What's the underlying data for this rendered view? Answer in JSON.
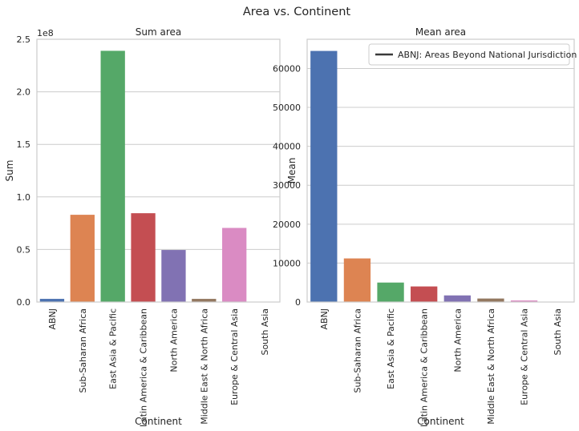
{
  "figure_title": "Area vs. Continent",
  "colors": [
    "#4c72b0",
    "#dd8452",
    "#55a868",
    "#c44e52",
    "#8172b3",
    "#937860",
    "#da8bc3",
    "#8c8c8c"
  ],
  "chart_data": [
    {
      "type": "bar",
      "title": "Sum area",
      "xlabel": "Continent",
      "ylabel": "Sum",
      "offset_label": "1e8",
      "categories": [
        "ABNJ",
        "Sub-Saharan Africa",
        "East Asia & Pacific",
        "Latin America & Caribbean",
        "North America",
        "Middle East & North Africa",
        "Europe & Central Asia",
        "South Asia"
      ],
      "values": [
        3000000,
        83000000,
        239000000,
        84500000,
        49500000,
        3000000,
        70500000,
        300000
      ],
      "ylim": [
        0,
        250000000
      ],
      "yticks": [
        0,
        50000000,
        100000000,
        150000000,
        200000000,
        250000000
      ],
      "ytick_labels": [
        "0.0",
        "0.5",
        "1.0",
        "1.5",
        "2.0",
        "2.5"
      ],
      "grid": "y"
    },
    {
      "type": "bar",
      "title": "Mean area",
      "xlabel": "Continent",
      "ylabel": "Mean",
      "categories": [
        "ABNJ",
        "Sub-Saharan Africa",
        "East Asia & Pacific",
        "Latin America & Caribbean",
        "North America",
        "Middle East & North Africa",
        "Europe & Central Asia",
        "South Asia"
      ],
      "values": [
        64500,
        11200,
        5000,
        4000,
        1700,
        900,
        400,
        50
      ],
      "ylim": [
        0,
        67500
      ],
      "yticks": [
        0,
        10000,
        20000,
        30000,
        40000,
        50000,
        60000
      ],
      "ytick_labels": [
        "0",
        "10000",
        "20000",
        "30000",
        "40000",
        "50000",
        "60000"
      ],
      "grid": "y",
      "legend": {
        "placement": "upper-right",
        "entries": [
          "ABNJ: Areas Beyond National Jurisdiction"
        ]
      }
    }
  ]
}
